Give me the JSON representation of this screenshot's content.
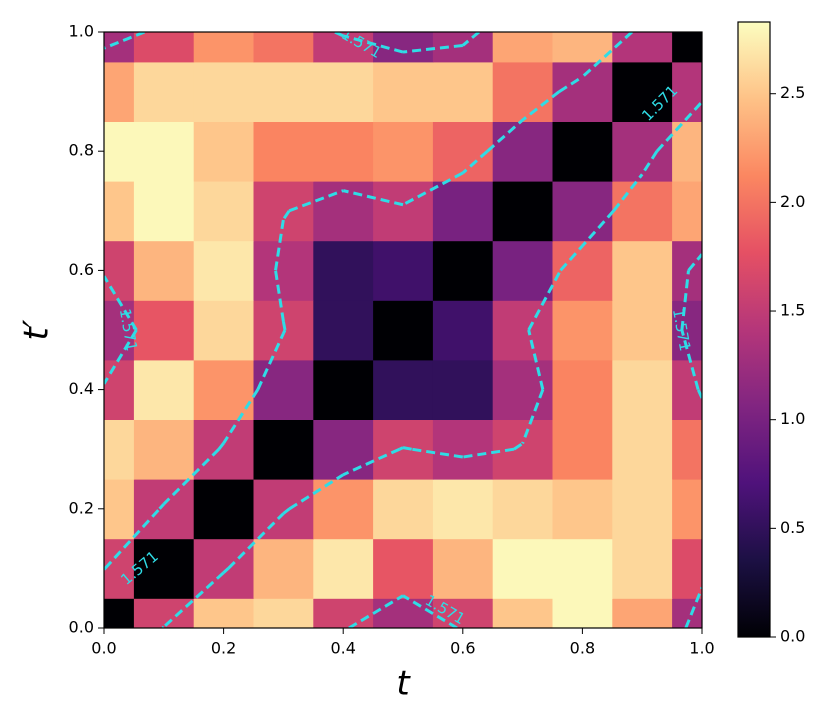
{
  "chart_data": {
    "type": "heatmap",
    "xlabel": "t",
    "ylabel": "t′",
    "x": [
      0,
      0.1,
      0.2,
      0.3,
      0.4,
      0.5,
      0.6,
      0.7,
      0.8,
      0.9,
      1
    ],
    "y": [
      0,
      0.1,
      0.2,
      0.3,
      0.4,
      0.5,
      0.6,
      0.7,
      0.8,
      0.9,
      1
    ],
    "z": [
      [
        0,
        1.6,
        2.5,
        2.6,
        1.6,
        1.3,
        1.6,
        2.5,
        2.8,
        2.3,
        1.3
      ],
      [
        1.6,
        0,
        1.5,
        2.4,
        2.7,
        1.8,
        2.4,
        2.8,
        2.8,
        2.6,
        1.7
      ],
      [
        2.5,
        1.5,
        0,
        1.5,
        2.2,
        2.6,
        2.7,
        2.6,
        2.5,
        2.6,
        2.2
      ],
      [
        2.6,
        2.4,
        1.5,
        0,
        1.1,
        1.6,
        1.4,
        1.6,
        2.1,
        2.6,
        2.0
      ],
      [
        1.6,
        2.7,
        2.2,
        1.1,
        0,
        0.5,
        0.5,
        1.3,
        2.1,
        2.6,
        1.5
      ],
      [
        1.3,
        1.8,
        2.6,
        1.6,
        0.5,
        0,
        0.6,
        1.5,
        2.2,
        2.5,
        1.1
      ],
      [
        1.6,
        2.4,
        2.7,
        1.4,
        0.5,
        0.6,
        0,
        1.0,
        1.9,
        2.5,
        1.3
      ],
      [
        2.5,
        2.8,
        2.6,
        1.6,
        1.3,
        1.5,
        1.0,
        0,
        1.1,
        2.0,
        2.3
      ],
      [
        2.8,
        2.8,
        2.5,
        2.1,
        2.1,
        2.2,
        1.9,
        1.1,
        0,
        1.3,
        2.4
      ],
      [
        2.3,
        2.6,
        2.6,
        2.6,
        2.6,
        2.5,
        2.5,
        2.0,
        1.3,
        0,
        1.4
      ],
      [
        1.3,
        1.7,
        2.2,
        2.0,
        1.5,
        1.1,
        1.3,
        2.3,
        2.4,
        1.4,
        0
      ]
    ],
    "xlim": [
      0,
      1
    ],
    "ylim": [
      0,
      1
    ],
    "xticks": [
      {
        "value": 0,
        "label": "0.0"
      },
      0.2,
      0.4,
      0.6,
      0.8,
      {
        "value": 1,
        "label": "1.0"
      }
    ],
    "yticks": [
      {
        "value": 0,
        "label": "0.0"
      },
      0.2,
      0.4,
      0.6,
      0.8,
      {
        "value": 1,
        "label": "1.0"
      }
    ],
    "colormap": [
      "#000004",
      "#1c1044",
      "#4f127b",
      "#812581",
      "#b5367a",
      "#e55064",
      "#fb8761",
      "#fec287",
      "#fcfdbf"
    ],
    "clim": [
      0,
      2.83
    ],
    "cticks": [
      {
        "value": 0,
        "label": "0.0"
      },
      0.5,
      {
        "value": 1,
        "label": "1.0"
      },
      1.5,
      {
        "value": 2,
        "label": "2.0"
      },
      2.5
    ],
    "contour_level": 1.571,
    "contour_color": "#2fdce6"
  }
}
